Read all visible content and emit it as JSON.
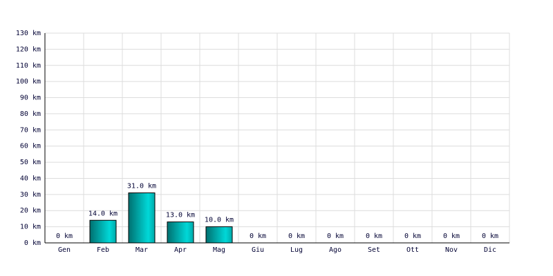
{
  "chart_data": {
    "type": "bar",
    "categories": [
      "Gen",
      "Feb",
      "Mar",
      "Apr",
      "Mag",
      "Giu",
      "Lug",
      "Ago",
      "Set",
      "Ott",
      "Nov",
      "Dic"
    ],
    "values": [
      0,
      14,
      31,
      13,
      10,
      0,
      0,
      0,
      0,
      0,
      0,
      0
    ],
    "value_labels": [
      "0 km",
      "14.0 km",
      "31.0 km",
      "13.0 km",
      "10.0 km",
      "0 km",
      "0 km",
      "0 km",
      "0 km",
      "0 km",
      "0 km",
      "0 km"
    ],
    "color": "#00d8d8",
    "ylim": [
      0,
      130
    ],
    "yticks": [
      {
        "value": 0,
        "label": "0 km"
      },
      {
        "value": 10,
        "label": "10 km"
      },
      {
        "value": 20,
        "label": "20 km"
      },
      {
        "value": 30,
        "label": "30 km"
      },
      {
        "value": 40,
        "label": "40 km"
      },
      {
        "value": 50,
        "label": "50 km"
      },
      {
        "value": 60,
        "label": "60 km"
      },
      {
        "value": 70,
        "label": "70 km"
      },
      {
        "value": 80,
        "label": "80 km"
      },
      {
        "value": 90,
        "label": "90 km"
      },
      {
        "value": 100,
        "label": "100 km"
      },
      {
        "value": 110,
        "label": "110 km"
      },
      {
        "value": 120,
        "label": "120 km"
      },
      {
        "value": 130,
        "label": "130 km"
      }
    ],
    "grid": true
  }
}
